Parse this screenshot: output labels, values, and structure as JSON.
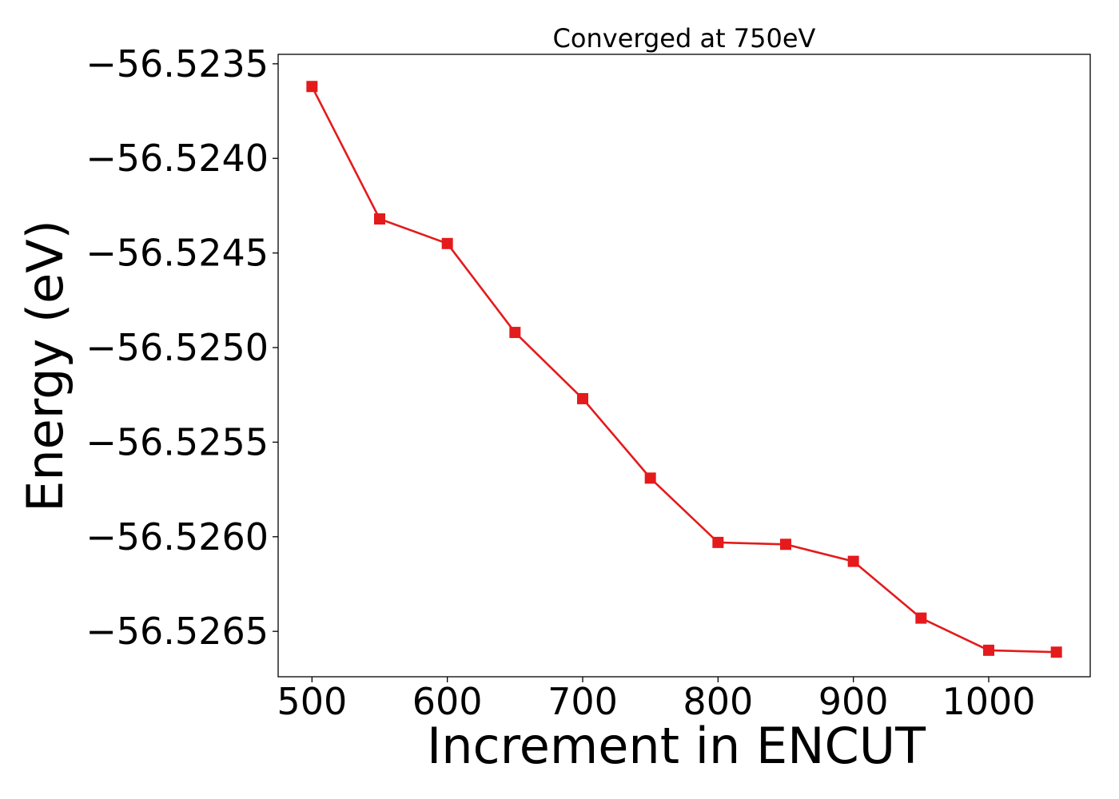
{
  "chart_data": {
    "type": "line",
    "title": "Converged at 750eV",
    "xlabel": "Increment in ENCUT",
    "ylabel": "Energy (eV)",
    "xlim": [
      475,
      1075
    ],
    "ylim": [
      -56.52674,
      -56.52345
    ],
    "x_ticks": [
      500,
      600,
      700,
      800,
      900,
      1000
    ],
    "x_tick_labels": [
      "500",
      "600",
      "700",
      "800",
      "900",
      "1000"
    ],
    "y_ticks": [
      -56.5235,
      -56.524,
      -56.5245,
      -56.525,
      -56.5255,
      -56.526,
      -56.5265
    ],
    "y_tick_labels": [
      "−56.5235",
      "−56.5240",
      "−56.5245",
      "−56.5250",
      "−56.5255",
      "−56.5260",
      "−56.5265"
    ],
    "grid": false,
    "legend": "none",
    "series": [
      {
        "color": "#e41a1c",
        "marker": "square",
        "x": [
          500,
          550,
          600,
          650,
          700,
          750,
          800,
          850,
          900,
          950,
          1000,
          1050
        ],
        "values": [
          -56.52362,
          -56.52432,
          -56.52445,
          -56.52492,
          -56.52527,
          -56.52569,
          -56.52603,
          -56.52604,
          -56.52613,
          -56.52643,
          -56.5266,
          -56.52661
        ]
      }
    ]
  }
}
